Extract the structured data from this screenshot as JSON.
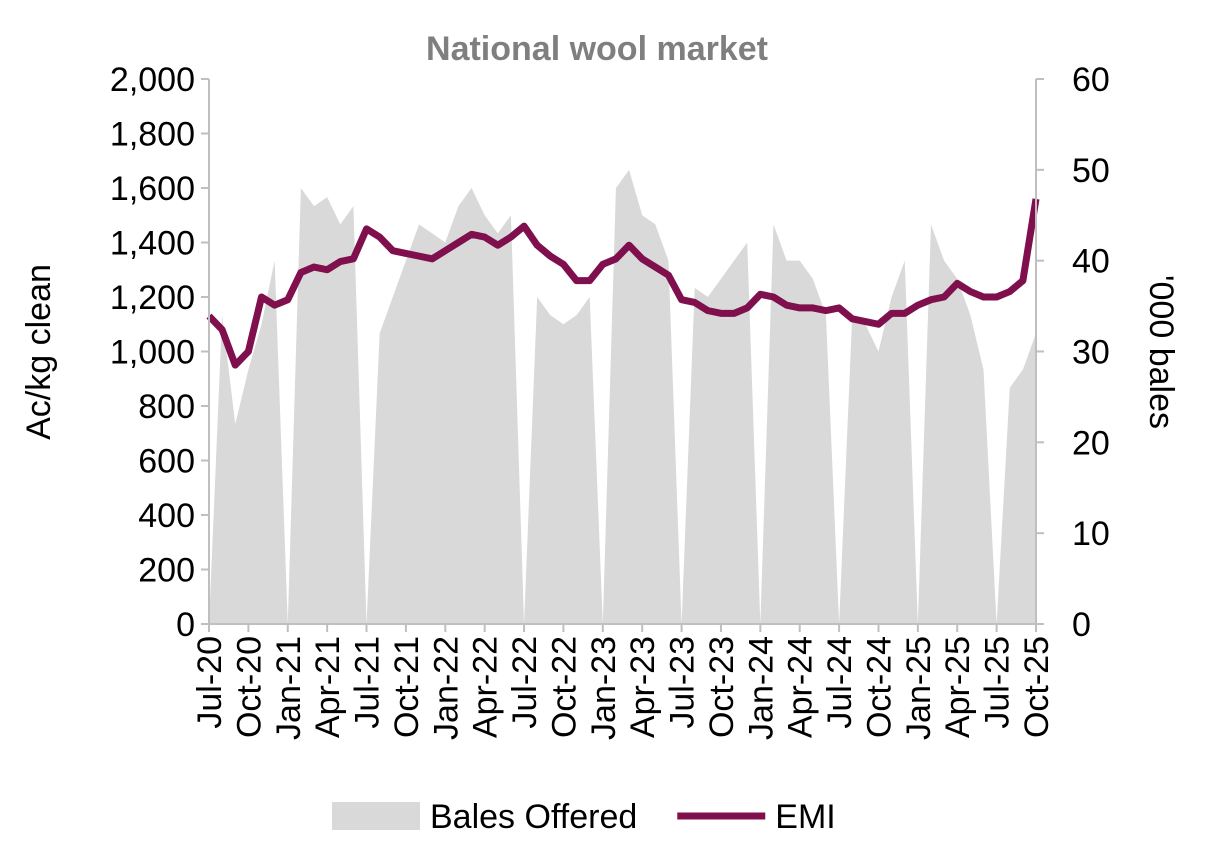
{
  "chart_data": {
    "type": "line",
    "title": "National wool market",
    "y_label": "Ac/kg clean",
    "y2_label": "'000 bales",
    "categories": [
      "Jul-20",
      null,
      null,
      "Oct-20",
      null,
      null,
      "Jan-21",
      null,
      null,
      "Apr-21",
      null,
      null,
      "Jul-21",
      null,
      null,
      "Oct-21",
      null,
      null,
      "Jan-22",
      null,
      null,
      "Apr-22",
      null,
      null,
      "Jul-22",
      null,
      null,
      "Oct-22",
      null,
      null,
      "Jan-23",
      null,
      null,
      "Apr-23",
      null,
      null,
      "Jul-23",
      null,
      null,
      "Oct-23",
      null,
      null,
      "Jan-24",
      null,
      null,
      "Apr-24",
      null,
      null,
      "Jul-24",
      null,
      null,
      "Oct-24",
      null,
      null,
      "Jan-25",
      null,
      null,
      "Apr-25",
      null,
      null,
      "Jul-25",
      null,
      null,
      "Oct-25"
    ],
    "series": [
      {
        "name": "Bales Offered",
        "type": "area",
        "axis": "y2",
        "color": "#d9d9d9",
        "values": [
          0,
          34,
          22,
          28,
          33,
          40,
          0,
          48,
          46,
          47,
          44,
          46,
          0,
          32,
          36,
          40,
          44,
          43,
          42,
          46,
          48,
          45,
          43,
          45,
          0,
          36,
          34,
          33,
          34,
          36,
          0,
          48,
          50,
          45,
          44,
          40,
          0,
          37,
          36,
          38,
          40,
          42,
          0,
          44,
          40,
          40,
          38,
          34,
          0,
          34,
          33,
          30,
          36,
          40,
          0,
          44,
          40,
          38,
          34,
          28,
          0,
          26,
          28,
          32
        ]
      },
      {
        "name": "EMI",
        "type": "line",
        "color": "#7f0f4d",
        "values": [
          1130,
          1080,
          950,
          1000,
          1200,
          1170,
          1190,
          1290,
          1310,
          1300,
          1330,
          1340,
          1450,
          1420,
          1370,
          1360,
          1350,
          1340,
          1370,
          1400,
          1430,
          1420,
          1390,
          1420,
          1460,
          1390,
          1350,
          1320,
          1260,
          1260,
          1320,
          1340,
          1390,
          1340,
          1310,
          1280,
          1190,
          1180,
          1150,
          1140,
          1140,
          1160,
          1210,
          1200,
          1170,
          1160,
          1160,
          1150,
          1160,
          1120,
          1110,
          1100,
          1140,
          1140,
          1170,
          1190,
          1200,
          1250,
          1220,
          1200,
          1200,
          1220,
          1260,
          1560
        ]
      }
    ],
    "ylim": [
      0,
      2000
    ],
    "yticks": [
      0,
      200,
      400,
      600,
      800,
      {
        "value": 1000,
        "label": "1,000"
      },
      {
        "value": 1200,
        "label": "1,200"
      },
      {
        "value": 1400,
        "label": "1,400"
      },
      {
        "value": 1600,
        "label": "1,600"
      },
      {
        "value": 1800,
        "label": "1,800"
      },
      {
        "value": 2000,
        "label": "2,000"
      }
    ],
    "y2lim": [
      0,
      60
    ],
    "y2ticks": [
      0,
      10,
      20,
      30,
      40,
      50,
      60
    ],
    "legend": "bottom"
  }
}
